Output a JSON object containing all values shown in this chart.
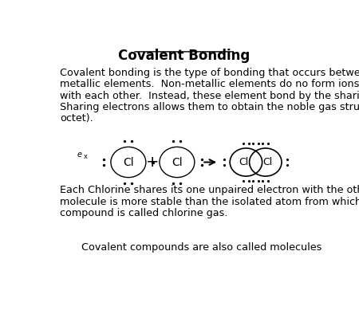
{
  "title": "Covalent Bonding",
  "paragraph1_lines": [
    "Covalent bonding is the type of bonding that occurs between two non-",
    "metallic elements.  Non-metallic elements do no form ions when they bond",
    "with each other.  Instead, these element bond by the sharing of electrons.",
    "Sharing electrons allows them to obtain the noble gas structure (stable",
    "octet)."
  ],
  "paragraph2_lines": [
    "Each Chlorine shares its one unpaired electron with the other.  The resulting",
    "molecule is more stable than the isolated atom from which it is formed.  This",
    "compound is called chlorine gas."
  ],
  "paragraph3": "Covalent compounds are also called molecules",
  "bg_color": "#ffffff",
  "text_color": "#000000",
  "title_fontsize": 12,
  "body_fontsize": 9.2
}
